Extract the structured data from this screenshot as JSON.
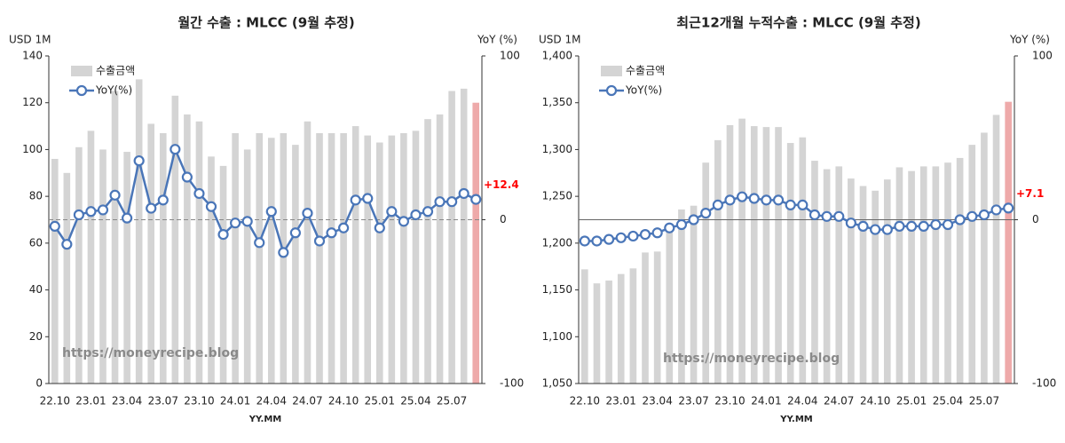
{
  "chart_data": [
    {
      "type": "bar",
      "title": "월간 수출 : MLCC (9월 추정)",
      "y_label": "USD 1M",
      "y2_label": "YoY (%)",
      "x_label": "YY.MM",
      "watermark": "https://moneyrecipe.blog",
      "categories": [
        "22.10",
        null,
        null,
        "23.01",
        null,
        null,
        "23.04",
        null,
        null,
        "23.07",
        null,
        null,
        "23.10",
        null,
        null,
        "24.01",
        null,
        null,
        "24.04",
        null,
        null,
        "24.07",
        null,
        null,
        "24.10",
        null,
        null,
        "25.01",
        null,
        null,
        "25.04",
        null,
        null,
        "25.07",
        null,
        null
      ],
      "series": [
        {
          "name": "수출금액",
          "color": "#d4d4d4",
          "last_color": "#eeaaaa",
          "values": [
            96,
            90,
            101,
            108,
            100,
            125,
            99,
            130,
            111,
            107,
            123,
            115,
            112,
            97,
            93,
            107,
            100,
            107,
            105,
            107,
            102,
            112,
            107,
            107,
            107,
            110,
            106,
            103,
            106,
            107,
            108,
            113,
            115,
            125,
            126,
            120
          ]
        },
        {
          "name": "YoY(%)",
          "type": "line",
          "axis": "y2",
          "color": "#4a76b8",
          "values": [
            -4,
            -15,
            3,
            5,
            6,
            15,
            1,
            36,
            7,
            12,
            43,
            26,
            16,
            8,
            -9,
            -2,
            -1,
            -14,
            5,
            -20,
            -8,
            4,
            -13,
            -8,
            -5,
            12,
            13,
            -5,
            5,
            -1,
            3,
            5,
            11,
            11,
            16,
            12.4
          ]
        }
      ],
      "annotations": [
        {
          "text": "+12.4",
          "color": "#ff0000"
        }
      ],
      "ylim": [
        0,
        140
      ],
      "yticks": [
        0,
        20,
        40,
        60,
        80,
        100,
        120,
        140
      ],
      "y2lim": [
        -100,
        100
      ],
      "y2ticks": [
        -100,
        0,
        100
      ],
      "zero_line": "dashed"
    },
    {
      "type": "bar",
      "title": "최근12개월 누적수출 : MLCC (9월 추정)",
      "y_label": "USD 1M",
      "y2_label": "YoY (%)",
      "x_label": "YY.MM",
      "watermark": "https://moneyrecipe.blog",
      "categories": [
        "22.10",
        null,
        null,
        "23.01",
        null,
        null,
        "23.04",
        null,
        null,
        "23.07",
        null,
        null,
        "23.10",
        null,
        null,
        "24.01",
        null,
        null,
        "24.04",
        null,
        null,
        "24.07",
        null,
        null,
        "24.10",
        null,
        null,
        "25.01",
        null,
        null,
        "25.04",
        null,
        null,
        "25.07",
        null,
        null
      ],
      "series": [
        {
          "name": "수출금액",
          "color": "#d4d4d4",
          "last_color": "#eeaaaa",
          "values": [
            1172,
            1157,
            1160,
            1167,
            1173,
            1190,
            1191,
            1220,
            1236,
            1240,
            1286,
            1310,
            1326,
            1333,
            1325,
            1324,
            1324,
            1307,
            1313,
            1288,
            1279,
            1282,
            1269,
            1261,
            1256,
            1268,
            1281,
            1277,
            1282,
            1282,
            1286,
            1291,
            1305,
            1318,
            1337,
            1351
          ]
        },
        {
          "name": "YoY(%)",
          "type": "line",
          "axis": "y2",
          "color": "#4a76b8",
          "values": [
            -13,
            -13,
            -12,
            -11,
            -10,
            -9,
            -8,
            -5,
            -3,
            0,
            4,
            9,
            12,
            14,
            13,
            12,
            12,
            9,
            9,
            3,
            2,
            2,
            -2,
            -4,
            -6,
            -6,
            -4,
            -4,
            -4,
            -3,
            -3,
            0,
            2,
            3,
            6,
            7.1
          ]
        }
      ],
      "annotations": [
        {
          "text": "+7.1",
          "color": "#ff0000"
        }
      ],
      "ylim": [
        1050,
        1400
      ],
      "yticks": [
        {
          "value": 1050,
          "label": "1,050"
        },
        {
          "value": 1100,
          "label": "1,100"
        },
        {
          "value": 1150,
          "label": "1,150"
        },
        {
          "value": 1200,
          "label": "1,200"
        },
        {
          "value": 1250,
          "label": "1,250"
        },
        {
          "value": 1300,
          "label": "1,300"
        },
        {
          "value": 1350,
          "label": "1,350"
        },
        {
          "value": 1400,
          "label": "1,400"
        }
      ],
      "y2lim": [
        -100,
        100
      ],
      "y2ticks": [
        -100,
        0,
        100
      ],
      "zero_line": "solid"
    }
  ]
}
